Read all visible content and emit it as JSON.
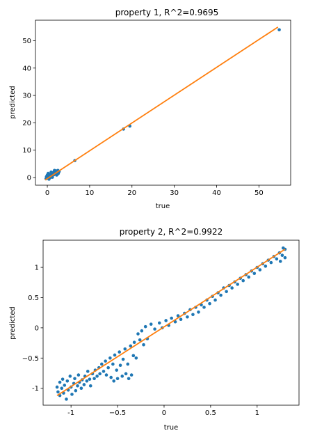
{
  "chart_data": [
    {
      "type": "scatter",
      "title": "property 1, R^2=0.9695",
      "xlabel": "true",
      "ylabel": "predicted",
      "xlim": [
        -2.8,
        57.5
      ],
      "ylim": [
        -2.8,
        57.5
      ],
      "xticks": [
        0,
        10,
        20,
        30,
        40,
        50
      ],
      "yticks": [
        0,
        10,
        20,
        30,
        40,
        50
      ],
      "grid": false,
      "series": [
        {
          "kind": "points",
          "color": "#1f77b4",
          "points": [
            [
              -0.3,
              -0.4
            ],
            [
              -0.2,
              0.3
            ],
            [
              0.0,
              0.9
            ],
            [
              0.1,
              -0.2
            ],
            [
              0.3,
              0.6
            ],
            [
              0.5,
              0.2
            ],
            [
              0.6,
              1.1
            ],
            [
              0.8,
              0.4
            ],
            [
              1.0,
              1.4
            ],
            [
              1.1,
              0.7
            ],
            [
              1.3,
              1.8
            ],
            [
              1.5,
              1.0
            ],
            [
              1.6,
              2.1
            ],
            [
              1.8,
              1.3
            ],
            [
              2.0,
              2.4
            ],
            [
              2.1,
              1.6
            ],
            [
              2.3,
              2.0
            ],
            [
              2.5,
              2.6
            ],
            [
              2.6,
              1.5
            ],
            [
              2.8,
              2.2
            ],
            [
              0.2,
              1.5
            ],
            [
              0.4,
              -0.6
            ],
            [
              0.9,
              2.0
            ],
            [
              1.2,
              0.1
            ],
            [
              1.7,
              2.6
            ],
            [
              2.2,
              0.9
            ],
            [
              0.7,
              0.0
            ],
            [
              1.9,
              1.9
            ],
            [
              2.4,
              1.2
            ],
            [
              -0.1,
              0.5
            ],
            [
              6.5,
              6.2
            ],
            [
              18.0,
              17.7
            ],
            [
              19.5,
              18.8
            ],
            [
              54.8,
              54.0
            ]
          ]
        },
        {
          "kind": "line",
          "color": "#ff7f0e",
          "x": [
            -0.5,
            54.5
          ],
          "y": [
            -0.9,
            55.0
          ]
        }
      ]
    },
    {
      "type": "scatter",
      "title": "property 2, R^2=0.9922",
      "xlabel": "true",
      "ylabel": "predicted",
      "xlim": [
        -1.3,
        1.45
      ],
      "ylim": [
        -1.28,
        1.45
      ],
      "xticks": [
        -1.0,
        -0.5,
        0.0,
        0.5,
        1.0
      ],
      "yticks": [
        -1.0,
        -0.5,
        0.0,
        0.5,
        1.0
      ],
      "grid": false,
      "series": [
        {
          "kind": "points",
          "color": "#1f77b4",
          "points": [
            [
              -1.15,
              -0.98
            ],
            [
              -1.14,
              -1.06
            ],
            [
              -1.12,
              -0.9
            ],
            [
              -1.12,
              -1.12
            ],
            [
              -1.1,
              -1.0
            ],
            [
              -1.09,
              -0.85
            ],
            [
              -1.08,
              -1.08
            ],
            [
              -1.07,
              -0.95
            ],
            [
              -1.05,
              -1.18
            ],
            [
              -1.04,
              -0.88
            ],
            [
              -1.03,
              -1.03
            ],
            [
              -1.01,
              -0.8
            ],
            [
              -1.0,
              -0.98
            ],
            [
              -0.99,
              -1.1
            ],
            [
              -0.97,
              -0.92
            ],
            [
              -0.96,
              -0.84
            ],
            [
              -0.95,
              -1.04
            ],
            [
              -0.93,
              -0.96
            ],
            [
              -0.92,
              -0.78
            ],
            [
              -0.91,
              -0.9
            ],
            [
              -0.89,
              -1.0
            ],
            [
              -0.88,
              -0.86
            ],
            [
              -0.86,
              -0.94
            ],
            [
              -0.85,
              -0.8
            ],
            [
              -0.83,
              -0.88
            ],
            [
              -0.82,
              -0.72
            ],
            [
              -0.8,
              -0.85
            ],
            [
              -0.79,
              -0.96
            ],
            [
              -0.77,
              -0.76
            ],
            [
              -0.75,
              -0.84
            ],
            [
              -0.74,
              -0.7
            ],
            [
              -0.72,
              -0.8
            ],
            [
              -0.7,
              -0.66
            ],
            [
              -0.69,
              -0.76
            ],
            [
              -0.67,
              -0.6
            ],
            [
              -0.65,
              -0.72
            ],
            [
              -0.63,
              -0.55
            ],
            [
              -0.62,
              -0.78
            ],
            [
              -0.6,
              -0.66
            ],
            [
              -0.58,
              -0.5
            ],
            [
              -0.57,
              -0.82
            ],
            [
              -0.55,
              -0.6
            ],
            [
              -0.54,
              -0.88
            ],
            [
              -0.53,
              -0.45
            ],
            [
              -0.51,
              -0.7
            ],
            [
              -0.5,
              -0.84
            ],
            [
              -0.48,
              -0.4
            ],
            [
              -0.47,
              -0.62
            ],
            [
              -0.45,
              -0.8
            ],
            [
              -0.44,
              -0.52
            ],
            [
              -0.42,
              -0.35
            ],
            [
              -0.41,
              -0.76
            ],
            [
              -0.39,
              -0.6
            ],
            [
              -0.38,
              -0.84
            ],
            [
              -0.36,
              -0.3
            ],
            [
              -0.35,
              -0.78
            ],
            [
              -0.33,
              -0.46
            ],
            [
              -0.32,
              -0.24
            ],
            [
              -0.3,
              -0.5
            ],
            [
              -0.28,
              -0.1
            ],
            [
              -0.26,
              -0.2
            ],
            [
              -0.24,
              -0.05
            ],
            [
              -0.22,
              -0.28
            ],
            [
              -0.2,
              0.02
            ],
            [
              -0.18,
              -0.18
            ],
            [
              -0.14,
              0.06
            ],
            [
              -0.1,
              -0.02
            ],
            [
              -0.05,
              0.08
            ],
            [
              -0.02,
              0.0
            ],
            [
              0.02,
              0.12
            ],
            [
              0.05,
              0.04
            ],
            [
              0.08,
              0.16
            ],
            [
              0.12,
              0.1
            ],
            [
              0.15,
              0.2
            ],
            [
              0.18,
              0.14
            ],
            [
              0.22,
              0.24
            ],
            [
              0.25,
              0.18
            ],
            [
              0.28,
              0.3
            ],
            [
              0.31,
              0.22
            ],
            [
              0.34,
              0.34
            ],
            [
              0.37,
              0.26
            ],
            [
              0.4,
              0.38
            ],
            [
              0.43,
              0.34
            ],
            [
              0.46,
              0.46
            ],
            [
              0.49,
              0.4
            ],
            [
              0.52,
              0.52
            ],
            [
              0.55,
              0.46
            ],
            [
              0.58,
              0.58
            ],
            [
              0.61,
              0.54
            ],
            [
              0.64,
              0.66
            ],
            [
              0.67,
              0.6
            ],
            [
              0.7,
              0.7
            ],
            [
              0.73,
              0.66
            ],
            [
              0.76,
              0.76
            ],
            [
              0.79,
              0.72
            ],
            [
              0.82,
              0.82
            ],
            [
              0.85,
              0.78
            ],
            [
              0.88,
              0.88
            ],
            [
              0.91,
              0.84
            ],
            [
              0.94,
              0.94
            ],
            [
              0.97,
              0.9
            ],
            [
              1.0,
              1.0
            ],
            [
              1.03,
              0.96
            ],
            [
              1.06,
              1.06
            ],
            [
              1.09,
              1.02
            ],
            [
              1.12,
              1.12
            ],
            [
              1.15,
              1.08
            ],
            [
              1.18,
              1.18
            ],
            [
              1.21,
              1.14
            ],
            [
              1.24,
              1.24
            ],
            [
              1.27,
              1.2
            ],
            [
              1.3,
              1.3
            ],
            [
              1.3,
              1.16
            ],
            [
              1.28,
              1.32
            ],
            [
              1.25,
              1.1
            ]
          ]
        },
        {
          "kind": "line",
          "color": "#ff7f0e",
          "x": [
            -1.15,
            1.3
          ],
          "y": [
            -1.12,
            1.3
          ]
        }
      ]
    }
  ]
}
